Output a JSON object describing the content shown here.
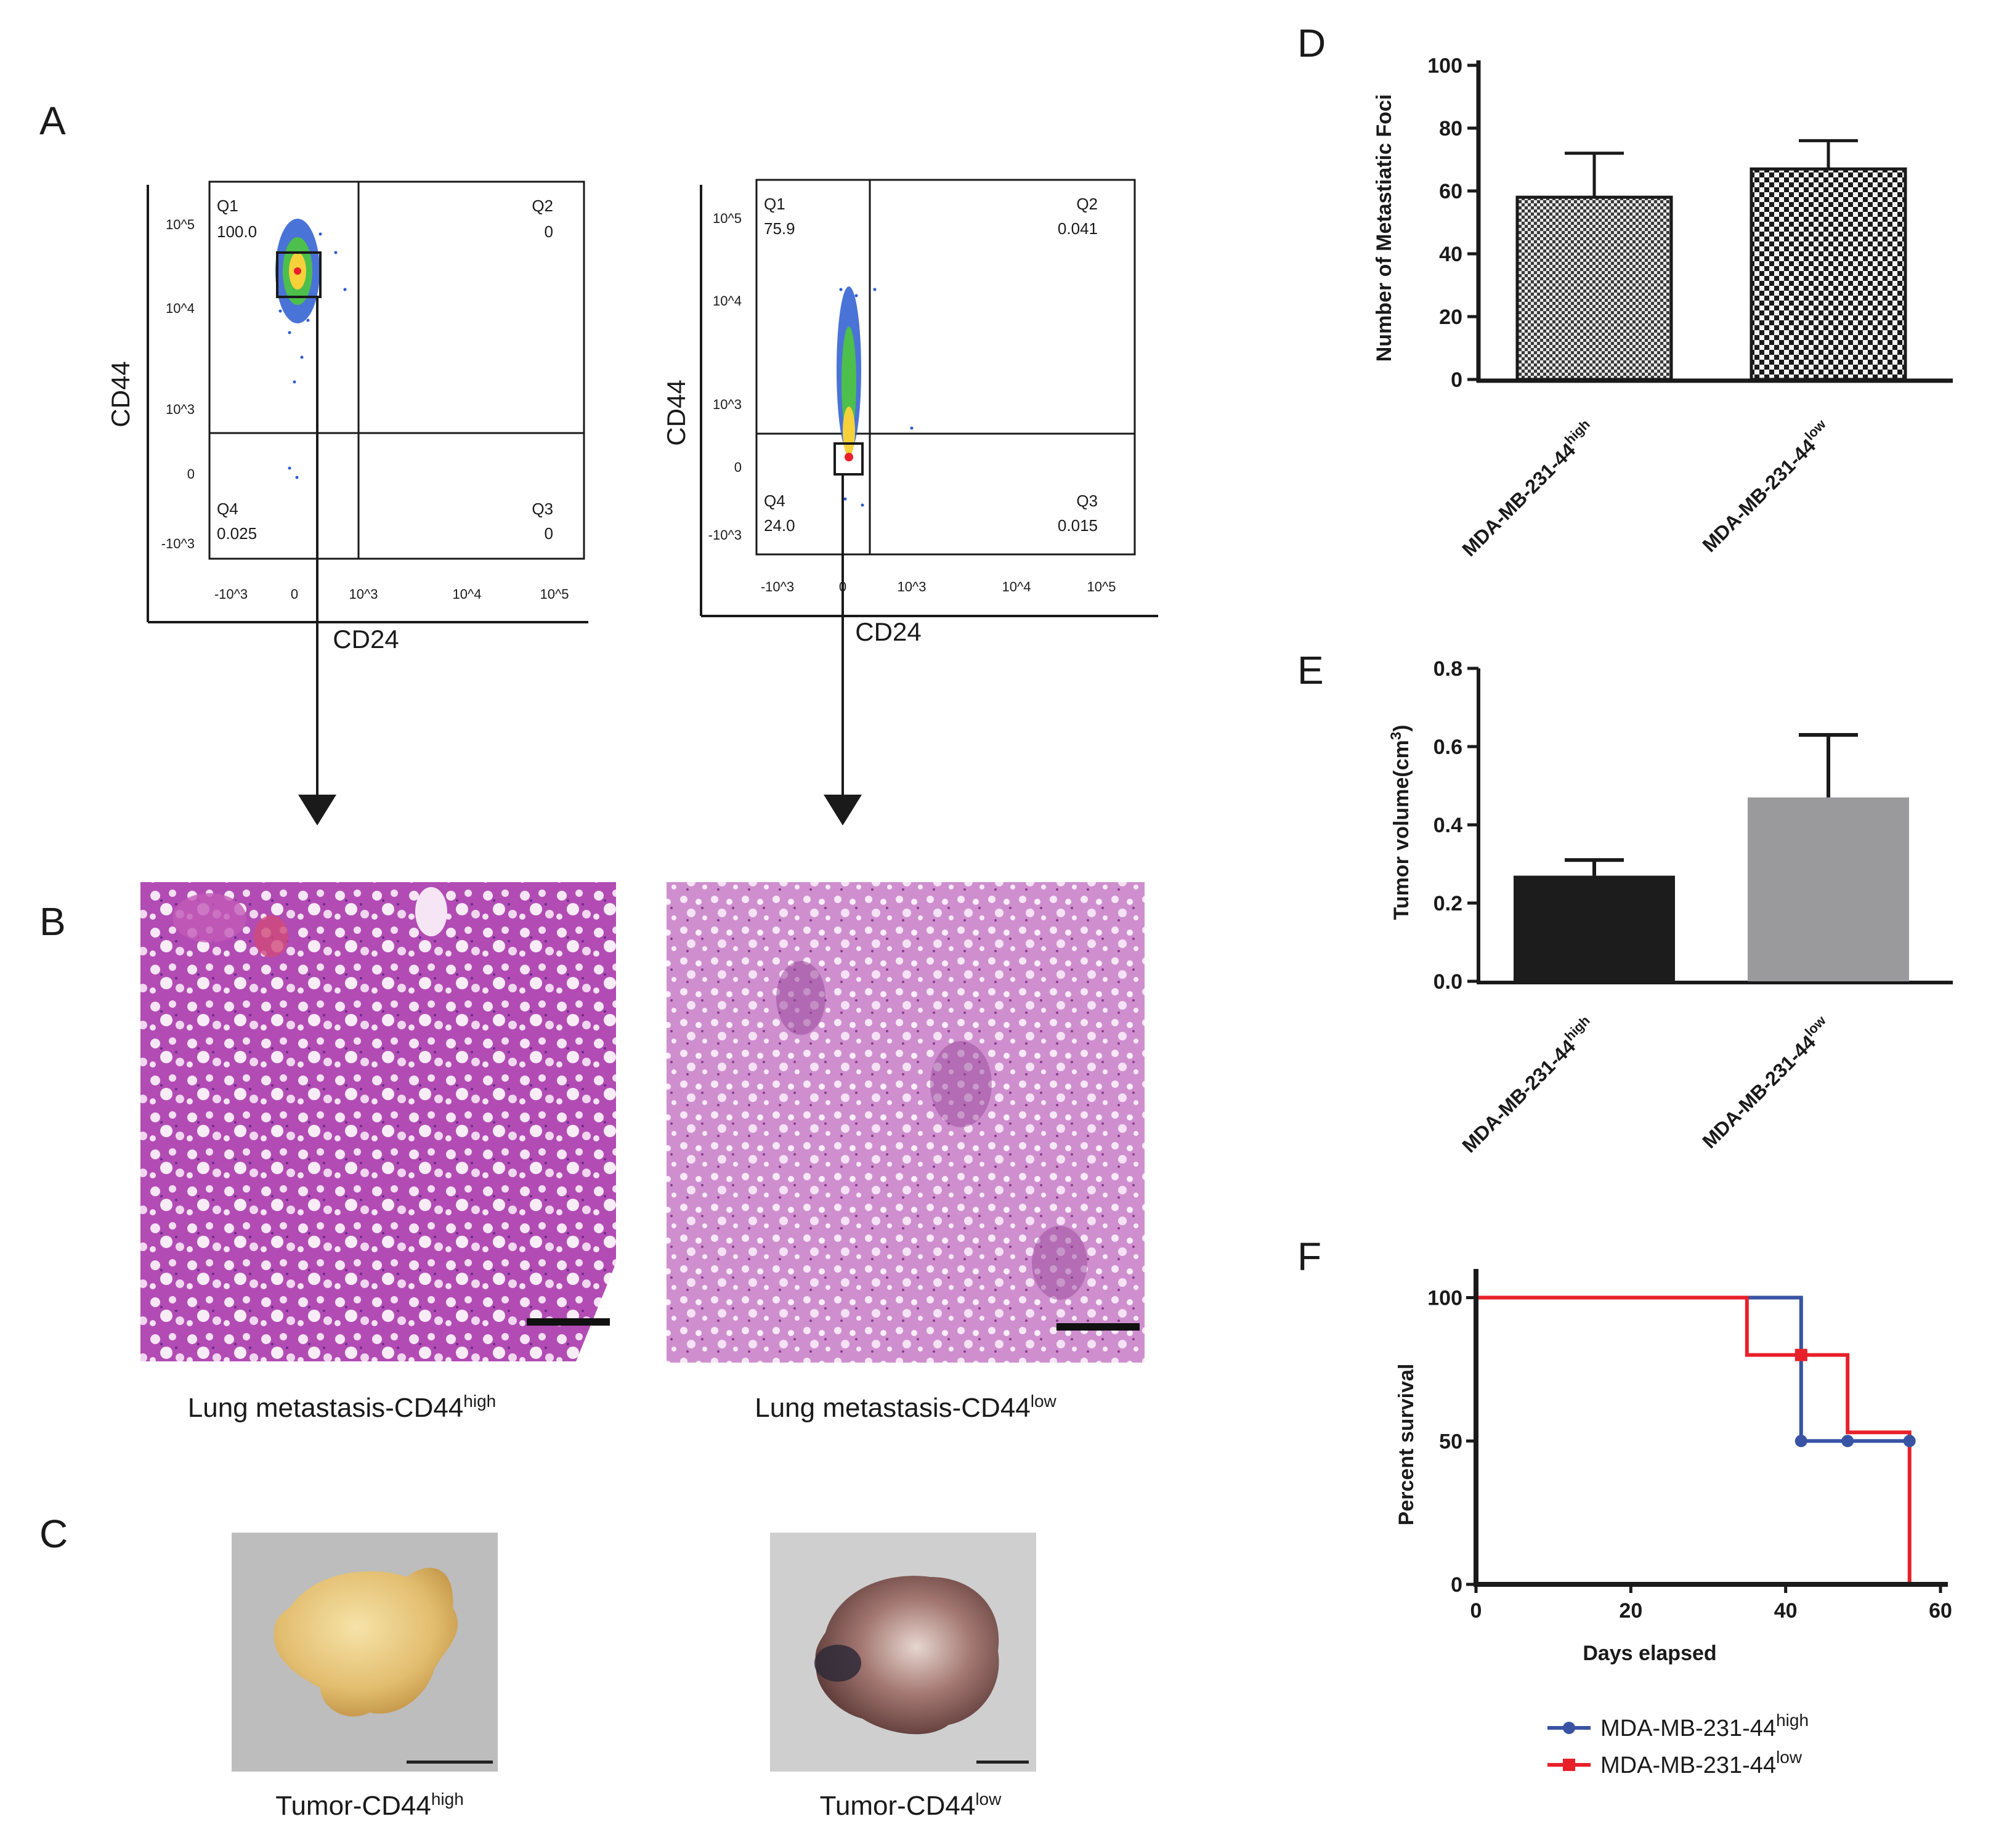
{
  "panel_letters": {
    "a": "A",
    "b": "B",
    "c": "C",
    "d": "D",
    "e": "E",
    "f": "F"
  },
  "captions": {
    "lung_high_base": "Lung metastasis-CD44",
    "lung_high_sup": "high",
    "lung_low_base": "Lung metastasis-CD44",
    "lung_low_sup": "low",
    "tumor_high_base": "Tumor-CD44",
    "tumor_high_sup": "high",
    "tumor_low_base": "Tumor-CD44",
    "tumor_low_sup": "low"
  },
  "colors": {
    "high_series": "#3953a4",
    "low_series": "#e8202a",
    "bar_e_high": "#1c1c1c",
    "bar_e_low": "#9a9a9c",
    "he_stain": "#b04fb0",
    "tumor_high": "#e8c77e",
    "tumor_low": "#8d5a57"
  },
  "chart_data": [
    {
      "id": "A1",
      "type": "scatter",
      "title": "",
      "xlabel": "CD24",
      "ylabel": "CD44",
      "x_ticks": [
        "-10^3",
        "0",
        "10^3",
        "10^4",
        "10^5"
      ],
      "y_ticks": [
        "10^5",
        "10^4",
        "10^3",
        "0",
        "-10^3"
      ],
      "quadrants": [
        {
          "name": "Q1",
          "value": "100.0"
        },
        {
          "name": "Q2",
          "value": "0"
        },
        {
          "name": "Q3",
          "value": "0"
        },
        {
          "name": "Q4",
          "value": "0.025"
        }
      ],
      "gate": "CD44 high / CD24 low"
    },
    {
      "id": "A2",
      "type": "scatter",
      "title": "",
      "xlabel": "CD24",
      "ylabel": "CD44",
      "x_ticks": [
        "-10^3",
        "0",
        "10^3",
        "10^4",
        "10^5"
      ],
      "y_ticks": [
        "10^5",
        "10^4",
        "10^3",
        "0",
        "-10^3"
      ],
      "quadrants": [
        {
          "name": "Q1",
          "value": "75.9"
        },
        {
          "name": "Q2",
          "value": "0.041"
        },
        {
          "name": "Q3",
          "value": "0.015"
        },
        {
          "name": "Q4",
          "value": "24.0"
        }
      ],
      "gate": "CD44 low / CD24 low"
    },
    {
      "id": "D",
      "type": "bar",
      "title": "",
      "ylabel": "Number of Metastiatic Foci",
      "categories": [
        {
          "base": "MDA-MB-231-44",
          "sup": "high"
        },
        {
          "base": "MDA-MB-231-44",
          "sup": "low"
        }
      ],
      "values": [
        58,
        67
      ],
      "errors": [
        14,
        9
      ],
      "fill": [
        "fine-checker",
        "coarse-checker"
      ],
      "ylim": [
        0,
        100
      ],
      "yticks": [
        0,
        20,
        40,
        60,
        80,
        100
      ]
    },
    {
      "id": "E",
      "type": "bar",
      "title": "",
      "ylabel_base": "Tumor volume(cm",
      "ylabel_sup": "3",
      "ylabel_end": ")",
      "categories": [
        {
          "base": "MDA-MB-231-44",
          "sup": "high"
        },
        {
          "base": "MDA-MB-231-44",
          "sup": "low"
        }
      ],
      "values": [
        0.27,
        0.47
      ],
      "errors": [
        0.04,
        0.16
      ],
      "ylim": [
        0,
        0.8
      ],
      "yticks": [
        "0.0",
        "0.2",
        "0.4",
        "0.6",
        "0.8"
      ]
    },
    {
      "id": "F",
      "type": "line",
      "title": "",
      "xlabel": "Days elapsed",
      "ylabel": "Percent survival",
      "xlim": [
        0,
        60
      ],
      "ylim": [
        0,
        110
      ],
      "xticks": [
        0,
        20,
        40,
        60
      ],
      "yticks": [
        0,
        50,
        100
      ],
      "series": [
        {
          "name_base": "MDA-MB-231-44",
          "name_sup": "high",
          "steps": [
            [
              0,
              100
            ],
            [
              42,
              100
            ],
            [
              42,
              50
            ],
            [
              56,
              50
            ]
          ],
          "markers": [
            [
              42,
              50
            ],
            [
              48,
              50
            ],
            [
              56,
              50
            ]
          ]
        },
        {
          "name_base": "MDA-MB-231-44",
          "name_sup": "low",
          "steps": [
            [
              0,
              100
            ],
            [
              35,
              100
            ],
            [
              35,
              80
            ],
            [
              48,
              80
            ],
            [
              48,
              53
            ],
            [
              56,
              53
            ],
            [
              56,
              0
            ]
          ],
          "markers": [
            [
              42,
              80
            ]
          ]
        }
      ]
    }
  ]
}
